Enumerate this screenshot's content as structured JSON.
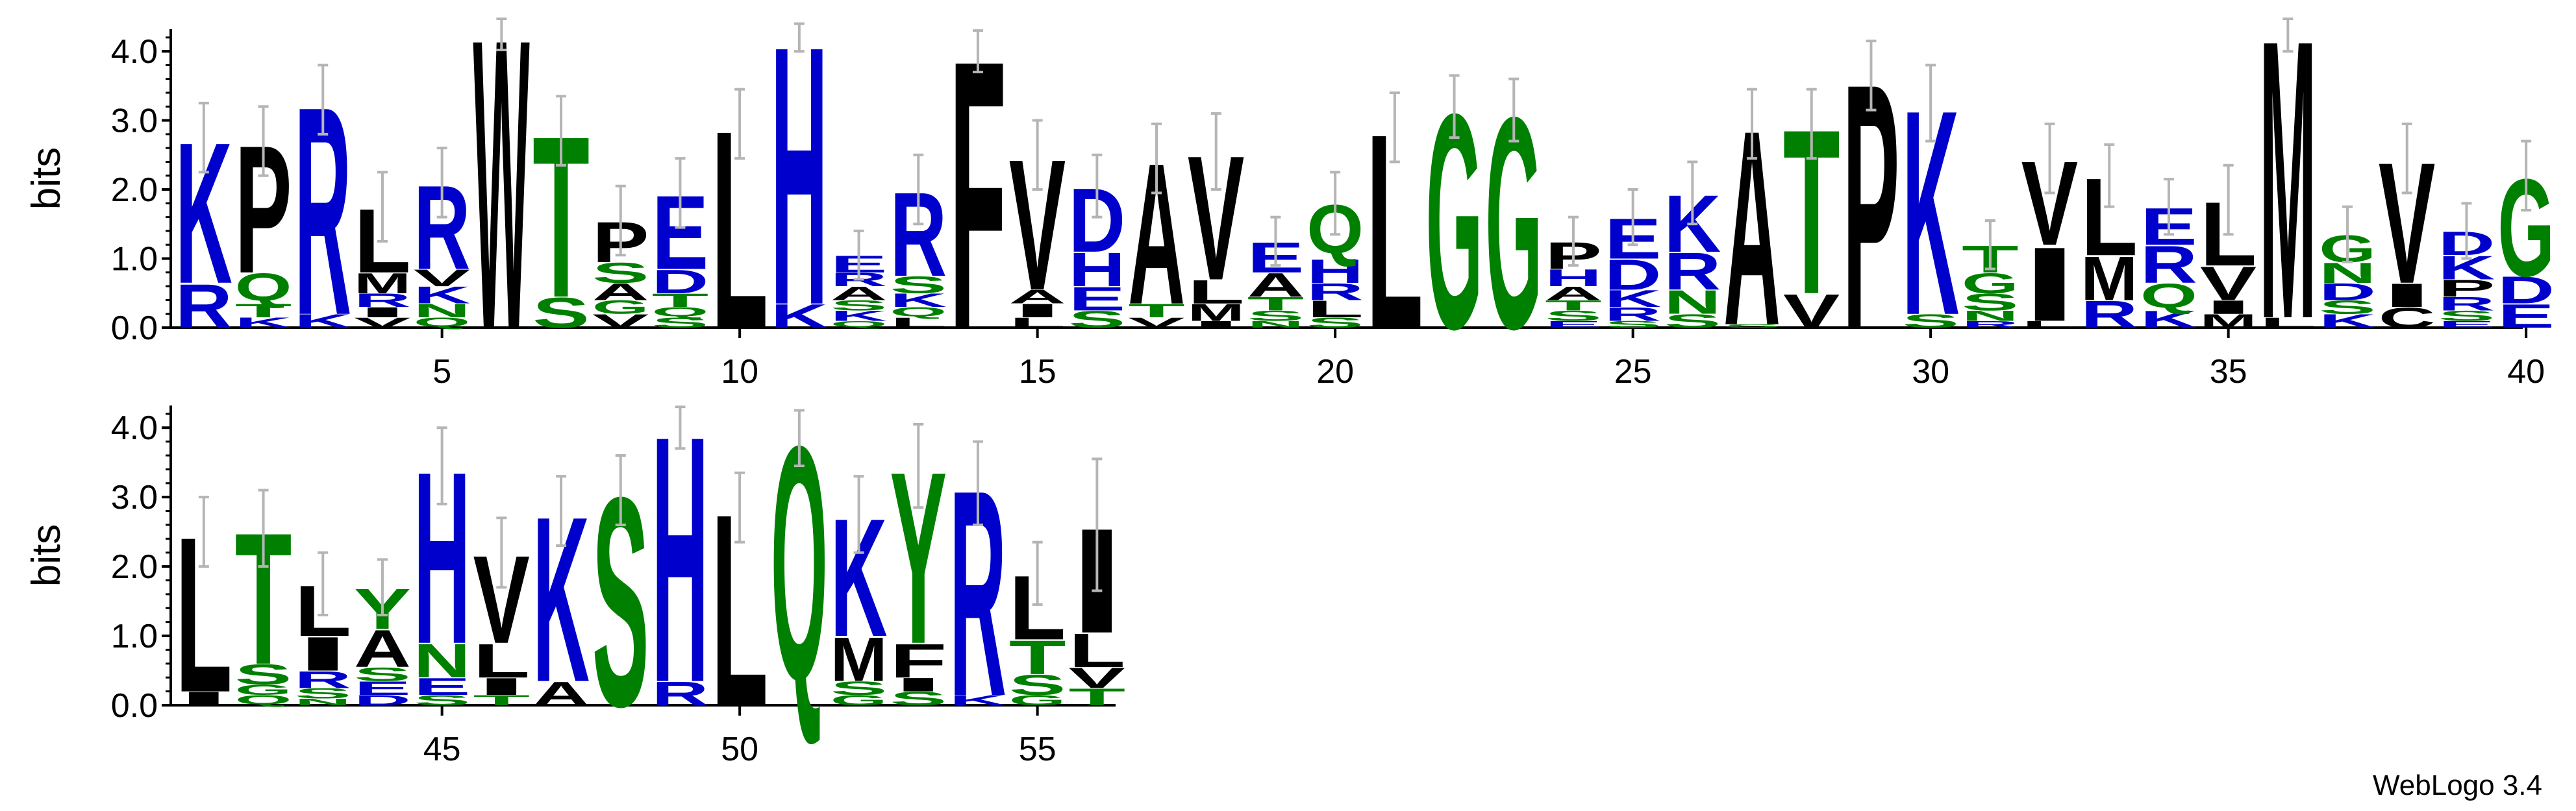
{
  "footer": {
    "text": "WebLogo 3.4"
  },
  "colors": {
    "hydrophobic": "#000000",
    "polar": "#008000",
    "charged": "#0000cc",
    "error_bar": "#b5b5b5"
  },
  "chart_data": {
    "type": "sequence-logo",
    "title": "",
    "xlabel": "",
    "ylabel": "bits",
    "ylim": [
      0,
      4.32
    ],
    "yticks": [
      "0.0",
      "1.0",
      "2.0",
      "3.0",
      "4.0"
    ],
    "rows": [
      {
        "xlim": [
          1,
          40
        ],
        "xticks": [
          5,
          10,
          15,
          20,
          25,
          30,
          35,
          40
        ]
      },
      {
        "xlim": [
          41,
          56
        ],
        "xticks": [
          45,
          50,
          55
        ]
      }
    ],
    "positions": [
      {
        "pos": 1,
        "total": 2.75,
        "err": 0.5,
        "stack": [
          [
            "K",
            2.1
          ],
          [
            "R",
            0.65
          ]
        ]
      },
      {
        "pos": 2,
        "total": 2.7,
        "err": 0.5,
        "stack": [
          [
            "P",
            1.9
          ],
          [
            "Q",
            0.45
          ],
          [
            "T",
            0.2
          ],
          [
            "K",
            0.15
          ]
        ]
      },
      {
        "pos": 3,
        "total": 3.3,
        "err": 0.5,
        "stack": [
          [
            "R",
            3.1
          ],
          [
            "K",
            0.2
          ]
        ]
      },
      {
        "pos": 4,
        "total": 1.75,
        "err": 0.5,
        "stack": [
          [
            "L",
            0.95
          ],
          [
            "M",
            0.3
          ],
          [
            "R",
            0.2
          ],
          [
            "V",
            0.15
          ],
          [
            "I",
            0.15
          ]
        ]
      },
      {
        "pos": 5,
        "total": 2.1,
        "err": 0.5,
        "stack": [
          [
            "R",
            1.25
          ],
          [
            "K",
            0.25
          ],
          [
            "V",
            0.25
          ],
          [
            "Q",
            0.15
          ],
          [
            "N",
            0.2
          ]
        ]
      },
      {
        "pos": 6,
        "total": 4.32,
        "err": 0.3,
        "stack": [
          [
            "W",
            4.32
          ]
        ]
      },
      {
        "pos": 7,
        "total": 2.85,
        "err": 0.5,
        "stack": [
          [
            "T",
            2.4
          ],
          [
            "S",
            0.45
          ]
        ]
      },
      {
        "pos": 8,
        "total": 1.55,
        "err": 0.5,
        "stack": [
          [
            "P",
            0.6
          ],
          [
            "S",
            0.3
          ],
          [
            "A",
            0.25
          ],
          [
            "V",
            0.2
          ],
          [
            "G",
            0.2
          ]
        ]
      },
      {
        "pos": 9,
        "total": 1.95,
        "err": 0.5,
        "stack": [
          [
            "E",
            1.1
          ],
          [
            "D",
            0.35
          ],
          [
            "T",
            0.2
          ],
          [
            "S",
            0.15
          ],
          [
            "Q",
            0.15
          ]
        ]
      },
      {
        "pos": 10,
        "total": 2.95,
        "err": 0.5,
        "stack": [
          [
            "L",
            2.95
          ]
        ]
      },
      {
        "pos": 11,
        "total": 4.2,
        "err": 0.2,
        "stack": [
          [
            "H",
            3.85
          ],
          [
            "K",
            0.35
          ]
        ]
      },
      {
        "pos": 12,
        "total": 1.05,
        "err": 0.35,
        "stack": [
          [
            "E",
            0.25
          ],
          [
            "A",
            0.2
          ],
          [
            "R",
            0.2
          ],
          [
            "K",
            0.15
          ],
          [
            "S",
            0.15
          ],
          [
            "Q",
            0.1
          ]
        ]
      },
      {
        "pos": 13,
        "total": 2.0,
        "err": 0.5,
        "stack": [
          [
            "R",
            1.25
          ],
          [
            "S",
            0.25
          ],
          [
            "K",
            0.2
          ],
          [
            "L",
            0.15
          ],
          [
            "Q",
            0.15
          ]
        ]
      },
      {
        "pos": 14,
        "total": 4.0,
        "err": 0.3,
        "stack": [
          [
            "F",
            4.0
          ]
        ]
      },
      {
        "pos": 15,
        "total": 2.5,
        "err": 0.5,
        "stack": [
          [
            "V",
            1.95
          ],
          [
            "I",
            0.2
          ],
          [
            "L",
            0.15
          ],
          [
            "A",
            0.2
          ]
        ]
      },
      {
        "pos": 16,
        "total": 2.05,
        "err": 0.45,
        "stack": [
          [
            "D",
            0.95
          ],
          [
            "H",
            0.5
          ],
          [
            "E",
            0.35
          ],
          [
            "S",
            0.25
          ]
        ]
      },
      {
        "pos": 17,
        "total": 2.45,
        "err": 0.5,
        "stack": [
          [
            "A",
            2.1
          ],
          [
            "T",
            0.2
          ],
          [
            "V",
            0.15
          ]
        ]
      },
      {
        "pos": 18,
        "total": 2.55,
        "err": 0.55,
        "stack": [
          [
            "V",
            1.85
          ],
          [
            "L",
            0.35
          ],
          [
            "M",
            0.25
          ],
          [
            "I",
            0.1
          ]
        ]
      },
      {
        "pos": 19,
        "total": 1.25,
        "err": 0.35,
        "stack": [
          [
            "E",
            0.45
          ],
          [
            "A",
            0.35
          ],
          [
            "T",
            0.2
          ],
          [
            "S",
            0.15
          ],
          [
            "N",
            0.1
          ]
        ]
      },
      {
        "pos": 20,
        "total": 1.8,
        "err": 0.45,
        "stack": [
          [
            "Q",
            0.8
          ],
          [
            "H",
            0.35
          ],
          [
            "L",
            0.25
          ],
          [
            "R",
            0.25
          ],
          [
            "S",
            0.15
          ]
        ]
      },
      {
        "pos": 21,
        "total": 2.9,
        "err": 0.5,
        "stack": [
          [
            "L",
            2.9
          ]
        ]
      },
      {
        "pos": 22,
        "total": 3.2,
        "err": 0.45,
        "stack": [
          [
            "G",
            3.2
          ]
        ]
      },
      {
        "pos": 23,
        "total": 3.15,
        "err": 0.45,
        "stack": [
          [
            "G",
            3.15
          ]
        ]
      },
      {
        "pos": 24,
        "total": 1.25,
        "err": 0.35,
        "stack": [
          [
            "P",
            0.4
          ],
          [
            "H",
            0.25
          ],
          [
            "A",
            0.2
          ],
          [
            "S",
            0.15
          ],
          [
            "T",
            0.15
          ],
          [
            "E",
            0.1
          ]
        ]
      },
      {
        "pos": 25,
        "total": 1.6,
        "err": 0.4,
        "stack": [
          [
            "E",
            0.6
          ],
          [
            "D",
            0.45
          ],
          [
            "K",
            0.25
          ],
          [
            "R",
            0.2
          ],
          [
            "S",
            0.1
          ]
        ]
      },
      {
        "pos": 26,
        "total": 1.95,
        "err": 0.45,
        "stack": [
          [
            "K",
            0.85
          ],
          [
            "R",
            0.55
          ],
          [
            "N",
            0.35
          ],
          [
            "S",
            0.2
          ]
        ]
      },
      {
        "pos": 27,
        "total": 2.95,
        "err": 0.5,
        "stack": [
          [
            "A",
            2.9
          ],
          [
            "S",
            0.05
          ]
        ]
      },
      {
        "pos": 28,
        "total": 2.95,
        "err": 0.5,
        "stack": [
          [
            "T",
            2.45
          ],
          [
            "V",
            0.5
          ]
        ]
      },
      {
        "pos": 29,
        "total": 3.65,
        "err": 0.5,
        "stack": [
          [
            "P",
            3.65
          ]
        ]
      },
      {
        "pos": 30,
        "total": 3.25,
        "err": 0.55,
        "stack": [
          [
            "K",
            3.05
          ],
          [
            "S",
            0.2
          ]
        ]
      },
      {
        "pos": 31,
        "total": 1.2,
        "err": 0.35,
        "stack": [
          [
            "T",
            0.4
          ],
          [
            "G",
            0.3
          ],
          [
            "S",
            0.25
          ],
          [
            "N",
            0.15
          ],
          [
            "R",
            0.1
          ]
        ]
      },
      {
        "pos": 32,
        "total": 2.45,
        "err": 0.5,
        "stack": [
          [
            "V",
            1.25
          ],
          [
            "I",
            1.1
          ],
          [
            "L",
            0.1
          ]
        ]
      },
      {
        "pos": 33,
        "total": 2.2,
        "err": 0.45,
        "stack": [
          [
            "L",
            1.15
          ],
          [
            "M",
            0.65
          ],
          [
            "R",
            0.4
          ]
        ]
      },
      {
        "pos": 34,
        "total": 1.75,
        "err": 0.4,
        "stack": [
          [
            "R",
            0.55
          ],
          [
            "E",
            0.55
          ],
          [
            "Q",
            0.4
          ],
          [
            "K",
            0.25
          ]
        ]
      },
      {
        "pos": 35,
        "total": 1.85,
        "err": 0.5,
        "stack": [
          [
            "L",
            0.95
          ],
          [
            "V",
            0.5
          ],
          [
            "M",
            0.2
          ],
          [
            "I",
            0.2
          ]
        ]
      },
      {
        "pos": 36,
        "total": 4.3,
        "err": 0.3,
        "stack": [
          [
            "M",
            4.15
          ],
          [
            "L",
            0.15
          ]
        ]
      },
      {
        "pos": 37,
        "total": 1.35,
        "err": 0.4,
        "stack": [
          [
            "G",
            0.4
          ],
          [
            "N",
            0.3
          ],
          [
            "D",
            0.25
          ],
          [
            "K",
            0.2
          ],
          [
            "S",
            0.2
          ]
        ]
      },
      {
        "pos": 38,
        "total": 2.45,
        "err": 0.5,
        "stack": [
          [
            "V",
            1.8
          ],
          [
            "I",
            0.35
          ],
          [
            "C",
            0.3
          ]
        ]
      },
      {
        "pos": 39,
        "total": 1.4,
        "err": 0.4,
        "stack": [
          [
            "K",
            0.35
          ],
          [
            "D",
            0.35
          ],
          [
            "P",
            0.25
          ],
          [
            "R",
            0.2
          ],
          [
            "S",
            0.15
          ],
          [
            "E",
            0.1
          ]
        ]
      },
      {
        "pos": 40,
        "total": 2.2,
        "err": 0.5,
        "stack": [
          [
            "G",
            1.45
          ],
          [
            "D",
            0.4
          ],
          [
            "E",
            0.35
          ]
        ]
      },
      {
        "pos": 41,
        "total": 2.5,
        "err": 0.5,
        "stack": [
          [
            "L",
            2.3
          ],
          [
            "I",
            0.2
          ]
        ]
      },
      {
        "pos": 42,
        "total": 2.55,
        "err": 0.55,
        "stack": [
          [
            "T",
            1.95
          ],
          [
            "S",
            0.3
          ],
          [
            "Q",
            0.15
          ],
          [
            "G",
            0.15
          ]
        ]
      },
      {
        "pos": 43,
        "total": 1.75,
        "err": 0.45,
        "stack": [
          [
            "L",
            0.75
          ],
          [
            "I",
            0.5
          ],
          [
            "R",
            0.25
          ],
          [
            "S",
            0.15
          ],
          [
            "N",
            0.1
          ]
        ]
      },
      {
        "pos": 44,
        "total": 1.7,
        "err": 0.4,
        "stack": [
          [
            "Y",
            0.6
          ],
          [
            "A",
            0.55
          ],
          [
            "E",
            0.2
          ],
          [
            "S",
            0.2
          ],
          [
            "D",
            0.15
          ]
        ]
      },
      {
        "pos": 45,
        "total": 3.45,
        "err": 0.55,
        "stack": [
          [
            "H",
            2.55
          ],
          [
            "N",
            0.5
          ],
          [
            "E",
            0.25
          ],
          [
            "S",
            0.15
          ]
        ]
      },
      {
        "pos": 46,
        "total": 2.2,
        "err": 0.5,
        "stack": [
          [
            "V",
            1.3
          ],
          [
            "L",
            0.5
          ],
          [
            "I",
            0.25
          ],
          [
            "T",
            0.15
          ]
        ]
      },
      {
        "pos": 47,
        "total": 2.8,
        "err": 0.5,
        "stack": [
          [
            "K",
            2.45
          ],
          [
            "A",
            0.35
          ]
        ]
      },
      {
        "pos": 48,
        "total": 3.1,
        "err": 0.5,
        "stack": [
          [
            "S",
            3.1
          ]
        ]
      },
      {
        "pos": 49,
        "total": 4.0,
        "err": 0.3,
        "stack": [
          [
            "H",
            3.65
          ],
          [
            "R",
            0.35
          ]
        ]
      },
      {
        "pos": 50,
        "total": 2.85,
        "err": 0.5,
        "stack": [
          [
            "L",
            2.85
          ]
        ]
      },
      {
        "pos": 51,
        "total": 3.85,
        "err": 0.4,
        "stack": [
          [
            "Q",
            3.85
          ]
        ]
      },
      {
        "pos": 52,
        "total": 2.75,
        "err": 0.55,
        "stack": [
          [
            "K",
            1.75
          ],
          [
            "M",
            0.65
          ],
          [
            "S",
            0.2
          ],
          [
            "G",
            0.15
          ]
        ]
      },
      {
        "pos": 53,
        "total": 3.45,
        "err": 0.6,
        "stack": [
          [
            "Y",
            2.55
          ],
          [
            "F",
            0.5
          ],
          [
            "S",
            0.2
          ],
          [
            "I",
            0.2
          ]
        ]
      },
      {
        "pos": 54,
        "total": 3.2,
        "err": 0.6,
        "stack": [
          [
            "R",
            3.05
          ],
          [
            "K",
            0.15
          ]
        ]
      },
      {
        "pos": 55,
        "total": 1.9,
        "err": 0.45,
        "stack": [
          [
            "L",
            0.95
          ],
          [
            "T",
            0.5
          ],
          [
            "S",
            0.3
          ],
          [
            "G",
            0.15
          ]
        ]
      },
      {
        "pos": 56,
        "total": 2.6,
        "err": 0.95,
        "stack": [
          [
            "I",
            1.55
          ],
          [
            "L",
            0.5
          ],
          [
            "V",
            0.3
          ],
          [
            "T",
            0.25
          ]
        ]
      }
    ]
  }
}
